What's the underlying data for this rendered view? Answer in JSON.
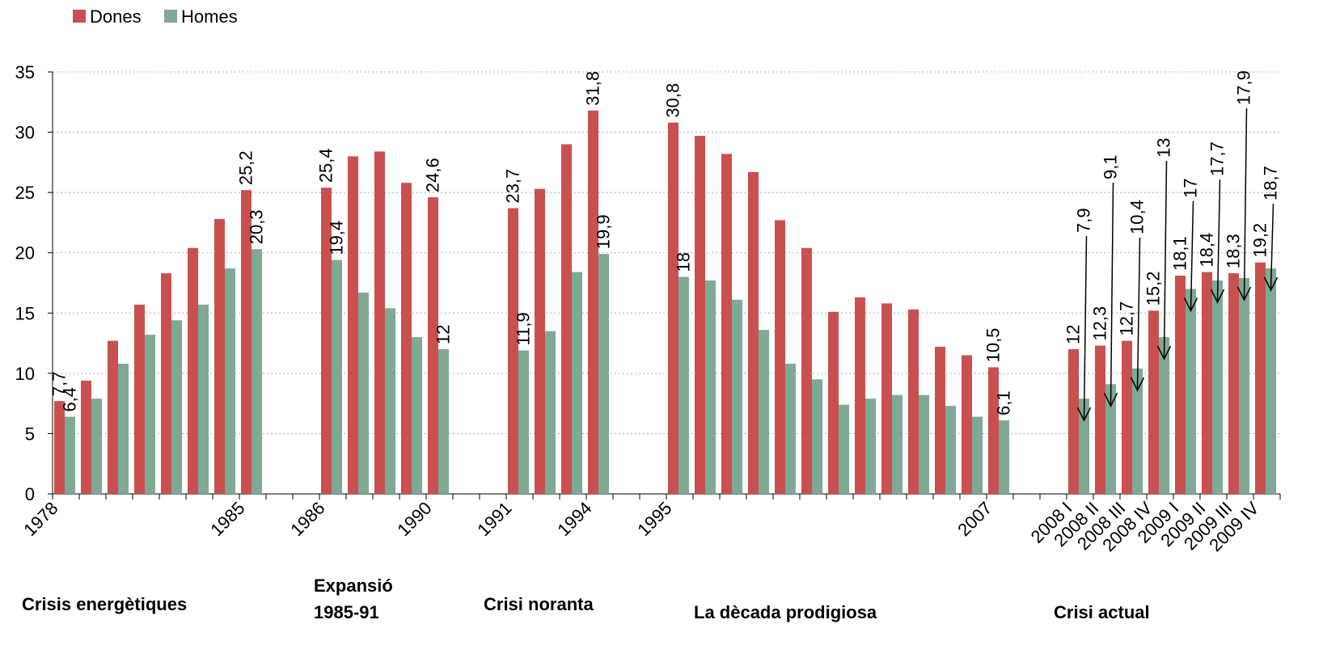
{
  "chart_data": {
    "type": "bar",
    "categories": [
      "1978",
      null,
      null,
      null,
      null,
      null,
      null,
      "1985",
      null,
      null,
      "1986",
      null,
      null,
      null,
      "1990",
      null,
      null,
      "1991",
      null,
      null,
      "1994",
      null,
      null,
      "1995",
      null,
      null,
      null,
      null,
      null,
      null,
      null,
      null,
      null,
      null,
      null,
      "2007",
      null,
      null,
      "2008 I",
      "2008 II",
      "2008 III",
      "2008 IV",
      "2009 I",
      "2009 II",
      "2009 III",
      "2009 IV"
    ],
    "series": [
      {
        "name": "Dones",
        "color": "#c9504f",
        "values": [
          7.7,
          9.4,
          12.7,
          15.7,
          18.3,
          20.4,
          22.8,
          25.2,
          null,
          null,
          25.4,
          28.0,
          28.4,
          25.8,
          24.6,
          null,
          null,
          23.7,
          25.3,
          29.0,
          31.8,
          null,
          null,
          30.8,
          29.7,
          28.2,
          26.7,
          22.7,
          20.4,
          15.1,
          16.3,
          15.8,
          15.3,
          12.2,
          11.5,
          10.5,
          null,
          null,
          12,
          12.3,
          12.7,
          15.2,
          18.1,
          18.4,
          18.3,
          19.2
        ],
        "value_labels": [
          "7,7",
          null,
          null,
          null,
          null,
          null,
          null,
          "25,2",
          null,
          null,
          "25,4",
          null,
          null,
          null,
          "24,6",
          null,
          null,
          "23,7",
          null,
          null,
          "31,8",
          null,
          null,
          "30,8",
          null,
          null,
          null,
          null,
          null,
          null,
          null,
          null,
          null,
          null,
          null,
          "10,5",
          null,
          null,
          "12",
          "12,3",
          "12,7",
          "15,2",
          "18,1",
          "18,4",
          "18,3",
          "19,2"
        ]
      },
      {
        "name": "Homes",
        "color": "#7ea995",
        "values": [
          6.4,
          7.9,
          10.8,
          13.2,
          14.4,
          15.7,
          18.7,
          20.3,
          null,
          null,
          19.4,
          16.7,
          15.4,
          13.0,
          12,
          null,
          null,
          11.9,
          13.5,
          18.4,
          19.9,
          null,
          null,
          18,
          17.7,
          16.1,
          13.6,
          10.8,
          9.5,
          7.4,
          7.9,
          8.2,
          8.2,
          7.3,
          6.4,
          6.1,
          null,
          null,
          7.9,
          9.1,
          10.4,
          13,
          17,
          17.7,
          17.9,
          18.7
        ],
        "value_labels": [
          "6,4",
          null,
          null,
          null,
          null,
          null,
          null,
          "20,3",
          null,
          null,
          "19,4",
          null,
          null,
          null,
          "12",
          null,
          null,
          "11,9",
          null,
          null,
          "19,9",
          null,
          null,
          "18",
          null,
          null,
          null,
          null,
          null,
          null,
          null,
          null,
          null,
          null,
          null,
          "6,1",
          null,
          null,
          "7,9",
          "9,1",
          "10,4",
          "13",
          "17",
          "17,7",
          "17,9",
          "18,7"
        ]
      }
    ],
    "ylim": [
      0,
      35
    ],
    "yticks": [
      0,
      5,
      10,
      15,
      20,
      25,
      30,
      35
    ],
    "grid": true,
    "annotations": [
      [
        "Crisis energètiques"
      ],
      [
        "Expansió",
        "1985-91"
      ],
      [
        "Crisi noranta"
      ],
      [
        "La dècada prodigiosa"
      ],
      [
        "Crisi actual"
      ]
    ]
  }
}
